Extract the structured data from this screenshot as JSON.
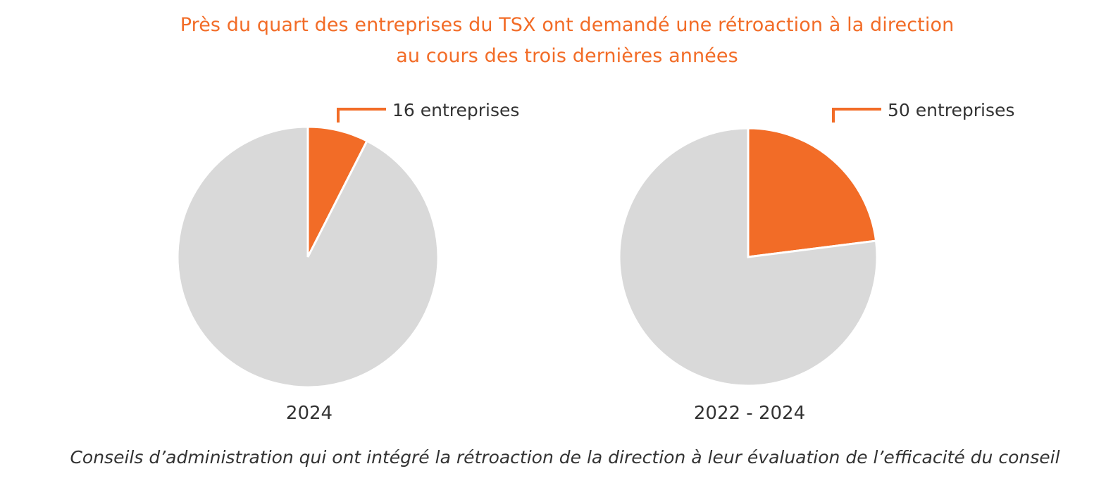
{
  "title_line1": "Près du quart des entreprises du TSX ont demandé une rétroaction à la direction",
  "title_line2": "au cours des trois dernières années",
  "footer": "Conseils d’administration qui ont intégré la rétroaction de la direction à leur évaluation de l’efficacité du conseil",
  "colors": {
    "highlight": "#F26C27",
    "rest": "#D9D9D9",
    "text": "#333333"
  },
  "chart_data": [
    {
      "type": "pie",
      "label": "2024",
      "slices": [
        {
          "label": "16 entreprises",
          "value": 7.5,
          "color": "#F26C27"
        },
        {
          "label": "",
          "value": 92.5,
          "color": "#D9D9D9"
        }
      ]
    },
    {
      "type": "pie",
      "label": "2022 - 2024",
      "slices": [
        {
          "label": "50 entreprises",
          "value": 23,
          "color": "#F26C27"
        },
        {
          "label": "",
          "value": 77,
          "color": "#D9D9D9"
        }
      ]
    }
  ]
}
